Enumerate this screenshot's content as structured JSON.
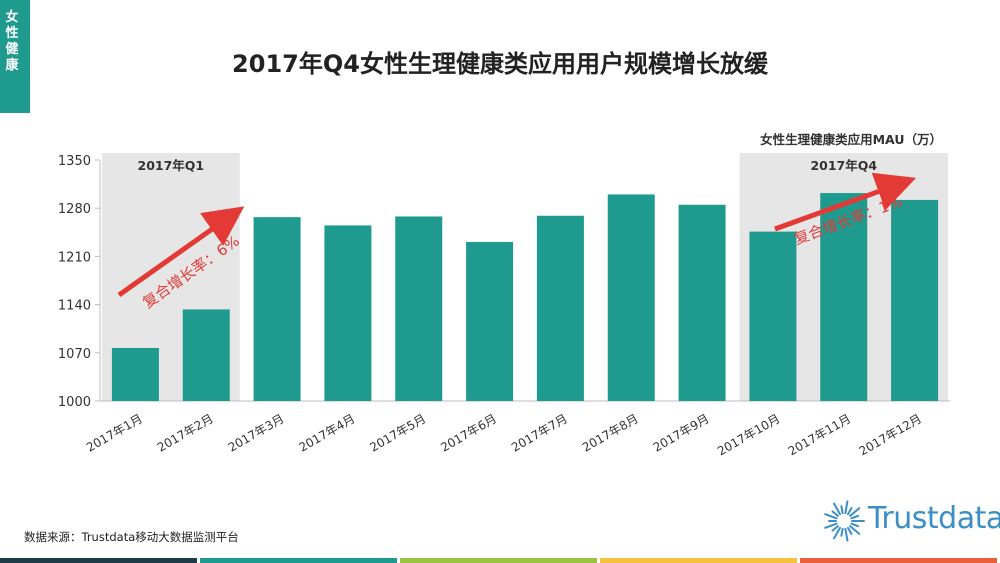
{
  "category_tag": "女性健康",
  "title": "2017年Q4女性生理健康类应用用户规模增长放缓",
  "source": "数据来源：Trustdata移动大数据监测平台",
  "logo_text": "Trustdata",
  "colors": {
    "bar": "#1f9a8f",
    "highlight_bg": "#e6e6e6",
    "arrow": "#e33a36",
    "logo": "#3a8fc6",
    "stripes": [
      "#1f3b47",
      "#1f9a8f",
      "#9ac43f",
      "#f6c23e",
      "#e9603b"
    ]
  },
  "chart_data": {
    "type": "bar",
    "unit_label": "女性生理健康类应用MAU（万）",
    "categories": [
      "2017年1月",
      "2017年2月",
      "2017年3月",
      "2017年4月",
      "2017年5月",
      "2017年6月",
      "2017年7月",
      "2017年8月",
      "2017年9月",
      "2017年10月",
      "2017年11月",
      "2017年12月"
    ],
    "values": [
      1077,
      1133,
      1267,
      1255,
      1268,
      1231,
      1269,
      1300,
      1285,
      1246,
      1302,
      1292
    ],
    "ylim": [
      1000,
      1350
    ],
    "yticks": [
      1000,
      1070,
      1140,
      1210,
      1280,
      1350
    ],
    "highlights": [
      {
        "label": "2017年Q1",
        "range": [
          0,
          1
        ],
        "growth": "复合增长率：6%"
      },
      {
        "label": "2017年Q4",
        "range": [
          9,
          11
        ],
        "growth": "复合增长率：1%"
      }
    ]
  }
}
